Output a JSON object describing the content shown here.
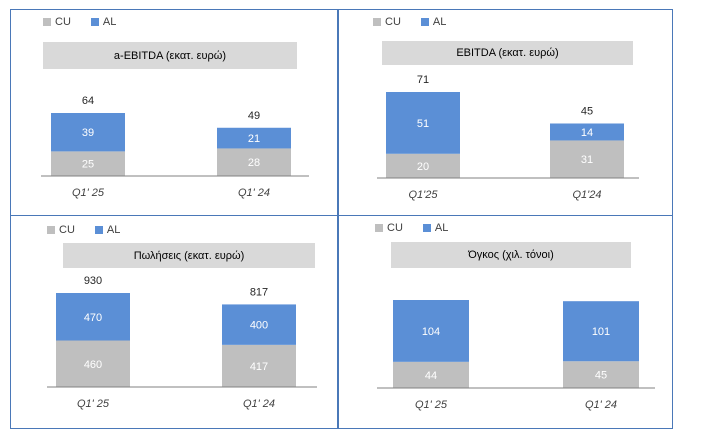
{
  "colors": {
    "CU": "#bfbfbf",
    "AL": "#5b8fd6",
    "axis": "#808080"
  },
  "chart_data": [
    {
      "type": "bar",
      "stacked": true,
      "title": "a-EBITDA (εκατ. ευρώ)",
      "legend": [
        "CU",
        "AL"
      ],
      "categories": [
        "Q1' 25",
        "Q1' 24"
      ],
      "series": [
        {
          "name": "CU",
          "values": [
            25,
            28
          ]
        },
        {
          "name": "AL",
          "values": [
            39,
            21
          ]
        }
      ],
      "totals": [
        "64",
        "49"
      ],
      "ylim": [
        0,
        64
      ]
    },
    {
      "type": "bar",
      "stacked": true,
      "title": "EBITDA (εκατ. ευρώ)",
      "legend": [
        "CU",
        "AL"
      ],
      "categories": [
        "Q1'25",
        "Q1'24"
      ],
      "series": [
        {
          "name": "CU",
          "values": [
            20,
            31
          ]
        },
        {
          "name": "AL",
          "values": [
            51,
            14
          ]
        }
      ],
      "totals": [
        "71",
        "45"
      ],
      "ylim": [
        0,
        71
      ]
    },
    {
      "type": "bar",
      "stacked": true,
      "title": "Πωλήσεις (εκατ. ευρώ)",
      "legend": [
        "CU",
        "AL"
      ],
      "categories": [
        "Q1' 25",
        "Q1' 24"
      ],
      "series": [
        {
          "name": "CU",
          "values": [
            460,
            417
          ]
        },
        {
          "name": "AL",
          "values": [
            470,
            400
          ]
        }
      ],
      "totals": [
        "930",
        "817"
      ],
      "ylim": [
        0,
        930
      ]
    },
    {
      "type": "bar",
      "stacked": true,
      "title": "Όγκος (χιλ. τόνοι)",
      "legend": [
        "CU",
        "AL"
      ],
      "categories": [
        "Q1' 25",
        "Q1' 24"
      ],
      "series": [
        {
          "name": "CU",
          "values": [
            44,
            45
          ]
        },
        {
          "name": "AL",
          "values": [
            104,
            101
          ]
        }
      ],
      "totals": [
        "",
        ""
      ],
      "ylim": [
        0,
        148
      ]
    }
  ]
}
